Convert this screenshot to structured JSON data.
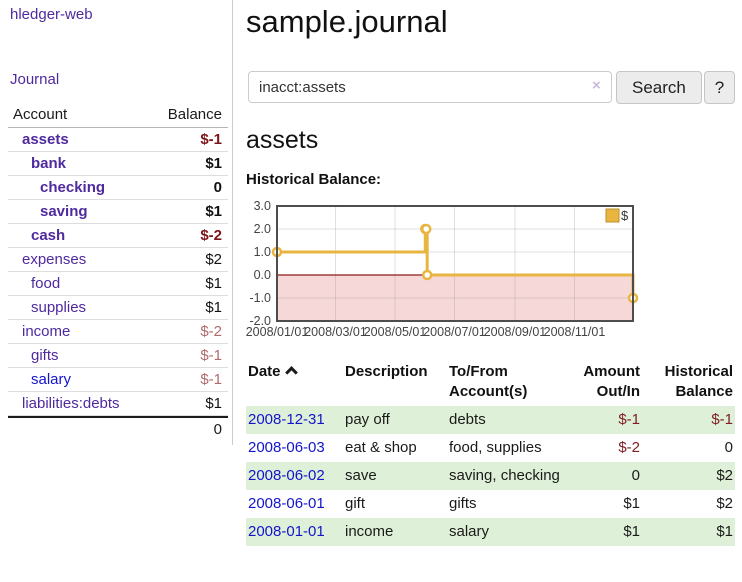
{
  "app": {
    "title": "hledger-web"
  },
  "sidebar": {
    "nav": [
      {
        "label": "Journal"
      }
    ],
    "accounts_table": {
      "headers": [
        "Account",
        "Balance"
      ],
      "rows": [
        {
          "name": "assets",
          "depth": 1,
          "bold": true,
          "balance": "$-1",
          "balance_style": "neg-strong",
          "link_style": "purple"
        },
        {
          "name": "bank",
          "depth": 2,
          "bold": true,
          "balance": "$1",
          "balance_style": "normal",
          "link_style": "purple"
        },
        {
          "name": "checking",
          "depth": 3,
          "bold": true,
          "balance": "0",
          "balance_style": "normal",
          "link_style": "purple"
        },
        {
          "name": "saving",
          "depth": 3,
          "bold": true,
          "balance": "$1",
          "balance_style": "normal",
          "link_style": "purple"
        },
        {
          "name": "cash",
          "depth": 2,
          "bold": true,
          "balance": "$-2",
          "balance_style": "neg-strong",
          "link_style": "purple"
        },
        {
          "name": "expenses",
          "depth": 1,
          "bold": false,
          "balance": "$2",
          "balance_style": "normal",
          "link_style": "purple"
        },
        {
          "name": "food",
          "depth": 2,
          "bold": false,
          "balance": "$1",
          "balance_style": "normal",
          "link_style": "purple"
        },
        {
          "name": "supplies",
          "depth": 2,
          "bold": false,
          "balance": "$1",
          "balance_style": "normal",
          "link_style": "purple"
        },
        {
          "name": "income",
          "depth": 1,
          "bold": false,
          "balance": "$-2",
          "balance_style": "neg-soft",
          "link_style": "purple"
        },
        {
          "name": "gifts",
          "depth": 2,
          "bold": false,
          "balance": "$-1",
          "balance_style": "neg-soft",
          "link_style": "purple"
        },
        {
          "name": "salary",
          "depth": 2,
          "bold": false,
          "balance": "$-1",
          "balance_style": "neg-soft",
          "link_style": "blue"
        },
        {
          "name": "liabilities:debts",
          "depth": 1,
          "bold": false,
          "balance": "$1",
          "balance_style": "normal",
          "link_style": "purple"
        }
      ],
      "total": "0"
    }
  },
  "main": {
    "title": "sample.journal",
    "search": {
      "value": "inacct:assets",
      "clear_icon": "×",
      "button": "Search",
      "help_button": "?"
    },
    "section_title": "assets",
    "chart_label": "Historical Balance:"
  },
  "chart_data": {
    "type": "line",
    "title": "Historical Balance:",
    "step": "after",
    "x_range": [
      "2008-01-01",
      "2008-12-31"
    ],
    "ylim": [
      -2,
      3
    ],
    "yticks": [
      "3.0",
      "2.0",
      "1.0",
      "0.0",
      "-1.0",
      "-2.0"
    ],
    "ytick_values": [
      3,
      2,
      1,
      0,
      -1,
      -2
    ],
    "xticks": [
      "2008/01/01",
      "2008/03/01",
      "2008/05/01",
      "2008/07/01",
      "2008/09/01",
      "2008/11/01"
    ],
    "legend": {
      "label": "$",
      "position": "top-right"
    },
    "grid": true,
    "series": [
      {
        "name": "$",
        "points": [
          [
            "2008-01-01",
            1
          ],
          [
            "2008-06-01",
            2
          ],
          [
            "2008-06-02",
            2
          ],
          [
            "2008-06-03",
            0
          ],
          [
            "2008-12-31",
            -1
          ]
        ]
      }
    ]
  },
  "register_table": {
    "headers": {
      "date": "Date",
      "description": "Description",
      "tofrom": [
        "To/From",
        "Account(s)"
      ],
      "amount": [
        "Amount",
        "Out/In"
      ],
      "balance": [
        "Historical",
        "Balance"
      ]
    },
    "rows": [
      {
        "date": "2008-12-31",
        "description": "pay off",
        "accounts": "debts",
        "amount": "$-1",
        "amount_neg": true,
        "balance": "$-1",
        "balance_neg": true,
        "highlight": true
      },
      {
        "date": "2008-06-03",
        "description": "eat & shop",
        "accounts": "food, supplies",
        "amount": "$-2",
        "amount_neg": true,
        "balance": "0",
        "balance_neg": false,
        "highlight": false
      },
      {
        "date": "2008-06-02",
        "description": "save",
        "accounts": "saving, checking",
        "amount": "0",
        "amount_neg": false,
        "balance": "$2",
        "balance_neg": false,
        "highlight": true
      },
      {
        "date": "2008-06-01",
        "description": "gift",
        "accounts": "gifts",
        "amount": "$1",
        "amount_neg": false,
        "balance": "$2",
        "balance_neg": false,
        "highlight": false
      },
      {
        "date": "2008-01-01",
        "description": "income",
        "accounts": "salary",
        "amount": "$1",
        "amount_neg": false,
        "balance": "$1",
        "balance_neg": false,
        "highlight": true
      }
    ]
  },
  "colors": {
    "link_purple": "#4f2a9e",
    "link_blue": "#1414cc",
    "negative_strong": "#7d1518",
    "negative_soft": "#b06a6e",
    "table_negative": "#7d1d21",
    "row_highlight_green": "#dff0d8",
    "chart_line_gold": "#e8b640",
    "chart_negative_fill": "#f7d8d8",
    "chart_zero_line": "#8b1a1a",
    "chart_border": "#4d4d4d"
  }
}
